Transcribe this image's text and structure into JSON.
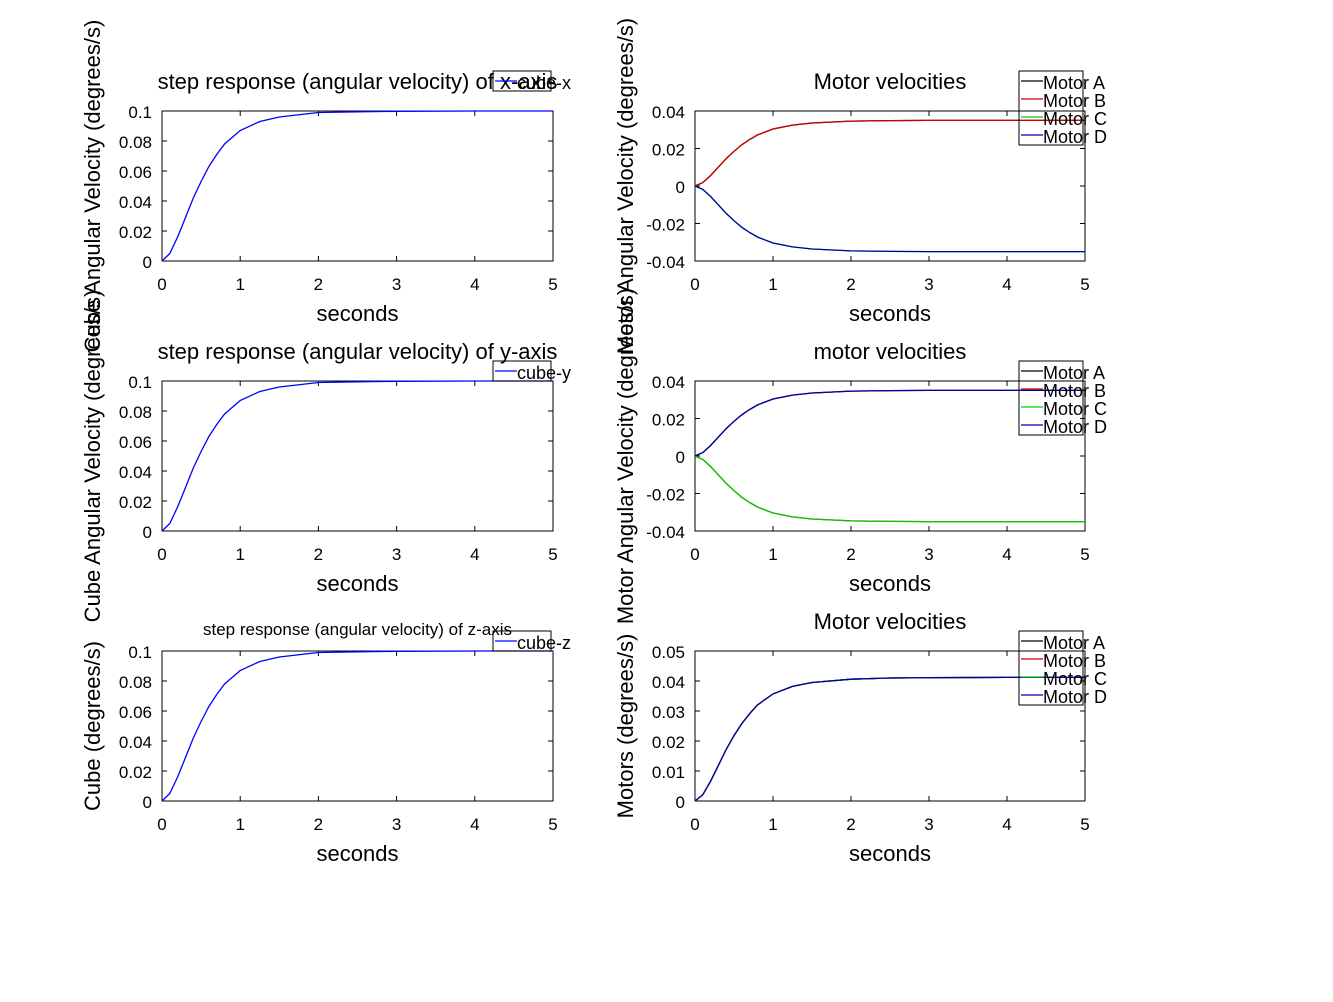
{
  "charts": [
    {
      "type": "line",
      "title": "step response (angular velocity) of x-axis",
      "xlabel": "seconds",
      "ylabel": "Cube Angular Velocity (degrees/s)",
      "xlim": [
        0,
        5
      ],
      "ylim": [
        0,
        0.1
      ],
      "xticks": [
        0,
        1,
        2,
        3,
        4,
        5
      ],
      "yticks": [
        0,
        0.02,
        0.04,
        0.06,
        0.08,
        0.1
      ],
      "grid": false,
      "legend_position": "top-right",
      "series": [
        {
          "name": "cube-x",
          "color": "#0000ff",
          "x": [
            0,
            0.1,
            0.2,
            0.3,
            0.4,
            0.5,
            0.6,
            0.7,
            0.8,
            1.0,
            1.25,
            1.5,
            2.0,
            2.5,
            3.0,
            4.0,
            5.0
          ],
          "y": [
            0,
            0.005,
            0.016,
            0.029,
            0.042,
            0.053,
            0.063,
            0.071,
            0.078,
            0.087,
            0.093,
            0.096,
            0.099,
            0.0995,
            0.0998,
            0.1,
            0.1
          ]
        }
      ]
    },
    {
      "type": "line",
      "title": "Motor velocities",
      "xlabel": "seconds",
      "ylabel": "Motor Angular Velocity (degrees/s)",
      "xlim": [
        0,
        5
      ],
      "ylim": [
        -0.04,
        0.04
      ],
      "xticks": [
        0,
        1,
        2,
        3,
        4,
        5
      ],
      "yticks": [
        -0.04,
        -0.02,
        0,
        0.02,
        0.04
      ],
      "grid": false,
      "legend_position": "top-right",
      "series": [
        {
          "name": "Motor A",
          "color": "#000000",
          "x": [
            0,
            0.1,
            0.2,
            0.3,
            0.4,
            0.5,
            0.6,
            0.7,
            0.8,
            1.0,
            1.25,
            1.5,
            2.0,
            2.5,
            3.0,
            4.0,
            5.0
          ],
          "y": [
            0,
            0.0018,
            0.0056,
            0.0101,
            0.0146,
            0.0185,
            0.022,
            0.0248,
            0.0272,
            0.0304,
            0.0325,
            0.0336,
            0.0346,
            0.0349,
            0.035,
            0.035,
            0.035
          ]
        },
        {
          "name": "Motor B",
          "color": "#cc0000",
          "x": [
            0,
            0.1,
            0.2,
            0.3,
            0.4,
            0.5,
            0.6,
            0.7,
            0.8,
            1.0,
            1.25,
            1.5,
            2.0,
            2.5,
            3.0,
            4.0,
            5.0
          ],
          "y": [
            0,
            0.0018,
            0.0056,
            0.0101,
            0.0146,
            0.0185,
            0.022,
            0.0248,
            0.0272,
            0.0304,
            0.0325,
            0.0336,
            0.0346,
            0.0349,
            0.035,
            0.035,
            0.035
          ]
        },
        {
          "name": "Motor C",
          "color": "#00cc00",
          "x": [
            0,
            0.1,
            0.2,
            0.3,
            0.4,
            0.5,
            0.6,
            0.7,
            0.8,
            1.0,
            1.25,
            1.5,
            2.0,
            2.5,
            3.0,
            4.0,
            5.0
          ],
          "y": [
            0,
            -0.0018,
            -0.0056,
            -0.0101,
            -0.0146,
            -0.0185,
            -0.022,
            -0.0248,
            -0.0272,
            -0.0304,
            -0.0325,
            -0.0336,
            -0.0346,
            -0.0349,
            -0.035,
            -0.035,
            -0.035
          ]
        },
        {
          "name": "Motor D",
          "color": "#0000aa",
          "x": [
            0,
            0.1,
            0.2,
            0.3,
            0.4,
            0.5,
            0.6,
            0.7,
            0.8,
            1.0,
            1.25,
            1.5,
            2.0,
            2.5,
            3.0,
            4.0,
            5.0
          ],
          "y": [
            0,
            -0.0018,
            -0.0056,
            -0.0101,
            -0.0146,
            -0.0185,
            -0.022,
            -0.0248,
            -0.0272,
            -0.0304,
            -0.0325,
            -0.0336,
            -0.0346,
            -0.0349,
            -0.035,
            -0.035,
            -0.035
          ]
        }
      ]
    },
    {
      "type": "line",
      "title": "step response (angular velocity) of y-axis",
      "xlabel": "seconds",
      "ylabel": "Cube Angular Velocity (degrees/s)",
      "xlim": [
        0,
        5
      ],
      "ylim": [
        0,
        0.1
      ],
      "xticks": [
        0,
        1,
        2,
        3,
        4,
        5
      ],
      "yticks": [
        0,
        0.02,
        0.04,
        0.06,
        0.08,
        0.1
      ],
      "grid": false,
      "legend_position": "top-right",
      "series": [
        {
          "name": "cube-y",
          "color": "#0000ff",
          "x": [
            0,
            0.1,
            0.2,
            0.3,
            0.4,
            0.5,
            0.6,
            0.7,
            0.8,
            1.0,
            1.25,
            1.5,
            2.0,
            2.5,
            3.0,
            4.0,
            5.0
          ],
          "y": [
            0,
            0.005,
            0.016,
            0.029,
            0.042,
            0.053,
            0.063,
            0.071,
            0.078,
            0.087,
            0.093,
            0.096,
            0.099,
            0.0995,
            0.0998,
            0.1,
            0.1
          ]
        }
      ]
    },
    {
      "type": "line",
      "title": "motor velocities",
      "xlabel": "seconds",
      "ylabel": "Motor Angular Velocity (degrees/s)",
      "xlim": [
        0,
        5
      ],
      "ylim": [
        -0.04,
        0.04
      ],
      "xticks": [
        0,
        1,
        2,
        3,
        4,
        5
      ],
      "yticks": [
        -0.04,
        -0.02,
        0,
        0.02,
        0.04
      ],
      "grid": false,
      "legend_position": "top-right",
      "series": [
        {
          "name": "Motor A",
          "color": "#000000",
          "x": [
            0,
            0.1,
            0.2,
            0.3,
            0.4,
            0.5,
            0.6,
            0.7,
            0.8,
            1.0,
            1.25,
            1.5,
            2.0,
            2.5,
            3.0,
            4.0,
            5.0
          ],
          "y": [
            0,
            0.0018,
            0.0056,
            0.0101,
            0.0146,
            0.0185,
            0.022,
            0.0248,
            0.0272,
            0.0304,
            0.0325,
            0.0336,
            0.0346,
            0.0349,
            0.035,
            0.035,
            0.035
          ]
        },
        {
          "name": "Motor B",
          "color": "#cc0000",
          "x": [
            0,
            0.1,
            0.2,
            0.3,
            0.4,
            0.5,
            0.6,
            0.7,
            0.8,
            1.0,
            1.25,
            1.5,
            2.0,
            2.5,
            3.0,
            4.0,
            5.0
          ],
          "y": [
            0,
            -0.0018,
            -0.0056,
            -0.0101,
            -0.0146,
            -0.0185,
            -0.022,
            -0.0248,
            -0.0272,
            -0.0304,
            -0.0325,
            -0.0336,
            -0.0346,
            -0.0349,
            -0.035,
            -0.035,
            -0.035
          ]
        },
        {
          "name": "Motor C",
          "color": "#00cc00",
          "x": [
            0,
            0.1,
            0.2,
            0.3,
            0.4,
            0.5,
            0.6,
            0.7,
            0.8,
            1.0,
            1.25,
            1.5,
            2.0,
            2.5,
            3.0,
            4.0,
            5.0
          ],
          "y": [
            0,
            -0.0018,
            -0.0056,
            -0.0101,
            -0.0146,
            -0.0185,
            -0.022,
            -0.0248,
            -0.0272,
            -0.0304,
            -0.0325,
            -0.0336,
            -0.0346,
            -0.0349,
            -0.035,
            -0.035,
            -0.035
          ]
        },
        {
          "name": "Motor D",
          "color": "#0000aa",
          "x": [
            0,
            0.1,
            0.2,
            0.3,
            0.4,
            0.5,
            0.6,
            0.7,
            0.8,
            1.0,
            1.25,
            1.5,
            2.0,
            2.5,
            3.0,
            4.0,
            5.0
          ],
          "y": [
            0,
            0.0018,
            0.0056,
            0.0101,
            0.0146,
            0.0185,
            0.022,
            0.0248,
            0.0272,
            0.0304,
            0.0325,
            0.0336,
            0.0346,
            0.0349,
            0.035,
            0.035,
            0.035
          ]
        }
      ]
    },
    {
      "type": "line",
      "title": "step response (angular velocity) of z-axis",
      "xlabel": "seconds",
      "ylabel": "Cube (degrees/s)",
      "xlim": [
        0,
        5
      ],
      "ylim": [
        0,
        0.1
      ],
      "xticks": [
        0,
        1,
        2,
        3,
        4,
        5
      ],
      "yticks": [
        0,
        0.02,
        0.04,
        0.06,
        0.08,
        0.1
      ],
      "grid": false,
      "legend_position": "top-right",
      "series": [
        {
          "name": "cube-z",
          "color": "#0000ff",
          "x": [
            0,
            0.1,
            0.2,
            0.3,
            0.4,
            0.5,
            0.6,
            0.7,
            0.8,
            1.0,
            1.25,
            1.5,
            2.0,
            2.5,
            3.0,
            4.0,
            5.0
          ],
          "y": [
            0,
            0.005,
            0.016,
            0.029,
            0.042,
            0.053,
            0.063,
            0.071,
            0.078,
            0.087,
            0.093,
            0.096,
            0.099,
            0.0995,
            0.0998,
            0.1,
            0.1
          ]
        }
      ]
    },
    {
      "type": "line",
      "title": "Motor velocities",
      "xlabel": "seconds",
      "ylabel": "Motors (degrees/s)",
      "xlim": [
        0,
        5
      ],
      "ylim": [
        0,
        0.05
      ],
      "xticks": [
        0,
        1,
        2,
        3,
        4,
        5
      ],
      "yticks": [
        0,
        0.01,
        0.02,
        0.03,
        0.04,
        0.05
      ],
      "grid": false,
      "legend_position": "top-right",
      "series": [
        {
          "name": "Motor A",
          "color": "#000000",
          "x": [
            0,
            0.1,
            0.2,
            0.3,
            0.4,
            0.5,
            0.6,
            0.7,
            0.8,
            1.0,
            1.25,
            1.5,
            2.0,
            2.5,
            3.0,
            4.0,
            5.0
          ],
          "y": [
            0,
            0.0021,
            0.0066,
            0.0119,
            0.0172,
            0.0218,
            0.0258,
            0.0291,
            0.032,
            0.0357,
            0.0382,
            0.0395,
            0.0406,
            0.041,
            0.0411,
            0.0412,
            0.0412
          ]
        },
        {
          "name": "Motor B",
          "color": "#cc0000",
          "x": [
            0,
            0.1,
            0.2,
            0.3,
            0.4,
            0.5,
            0.6,
            0.7,
            0.8,
            1.0,
            1.25,
            1.5,
            2.0,
            2.5,
            3.0,
            4.0,
            5.0
          ],
          "y": [
            0,
            0.0021,
            0.0066,
            0.0119,
            0.0172,
            0.0218,
            0.0258,
            0.0291,
            0.032,
            0.0357,
            0.0382,
            0.0395,
            0.0406,
            0.041,
            0.0411,
            0.0412,
            0.0412
          ]
        },
        {
          "name": "Motor C",
          "color": "#00cc00",
          "x": [
            0,
            0.1,
            0.2,
            0.3,
            0.4,
            0.5,
            0.6,
            0.7,
            0.8,
            1.0,
            1.25,
            1.5,
            2.0,
            2.5,
            3.0,
            4.0,
            5.0
          ],
          "y": [
            0,
            0.0021,
            0.0066,
            0.0119,
            0.0172,
            0.0218,
            0.0258,
            0.0291,
            0.032,
            0.0357,
            0.0382,
            0.0395,
            0.0406,
            0.041,
            0.0411,
            0.0412,
            0.0412
          ]
        },
        {
          "name": "Motor D",
          "color": "#0000aa",
          "x": [
            0,
            0.1,
            0.2,
            0.3,
            0.4,
            0.5,
            0.6,
            0.7,
            0.8,
            1.0,
            1.25,
            1.5,
            2.0,
            2.5,
            3.0,
            4.0,
            5.0
          ],
          "y": [
            0,
            0.0021,
            0.0066,
            0.0119,
            0.0172,
            0.0218,
            0.0258,
            0.0291,
            0.032,
            0.0357,
            0.0382,
            0.0395,
            0.0406,
            0.041,
            0.0411,
            0.0412,
            0.0412
          ]
        }
      ]
    }
  ],
  "chart_data": [
    {
      "type": "line",
      "title": "step response (angular velocity) of x-axis",
      "xlabel": "seconds",
      "ylabel": "Cube Angular Velocity (degrees/s)",
      "xlim": [
        0,
        5
      ],
      "ylim": [
        0,
        0.1
      ],
      "series_names": [
        "cube-x"
      ],
      "steady_state": 0.1
    },
    {
      "type": "line",
      "title": "Motor velocities",
      "xlabel": "seconds",
      "ylabel": "Motor Angular Velocity (degrees/s)",
      "xlim": [
        0,
        5
      ],
      "ylim": [
        -0.04,
        0.04
      ],
      "series_names": [
        "Motor A",
        "Motor B",
        "Motor C",
        "Motor D"
      ],
      "steady_state": [
        0.035,
        0.035,
        -0.035,
        -0.035
      ]
    },
    {
      "type": "line",
      "title": "step response (angular velocity) of y-axis",
      "xlabel": "seconds",
      "ylabel": "Cube Angular Velocity (degrees/s)",
      "xlim": [
        0,
        5
      ],
      "ylim": [
        0,
        0.1
      ],
      "series_names": [
        "cube-y"
      ],
      "steady_state": 0.1
    },
    {
      "type": "line",
      "title": "motor velocities",
      "xlabel": "seconds",
      "ylabel": "Motor Angular Velocity (degrees/s)",
      "xlim": [
        0,
        5
      ],
      "ylim": [
        -0.04,
        0.04
      ],
      "series_names": [
        "Motor A",
        "Motor B",
        "Motor C",
        "Motor D"
      ],
      "steady_state": [
        0.035,
        -0.035,
        -0.035,
        0.035
      ]
    },
    {
      "type": "line",
      "title": "step response (angular velocity) of z-axis",
      "xlabel": "seconds",
      "ylabel": "Cube (degrees/s)",
      "xlim": [
        0,
        5
      ],
      "ylim": [
        0,
        0.1
      ],
      "series_names": [
        "cube-z"
      ],
      "steady_state": 0.1
    },
    {
      "type": "line",
      "title": "Motor velocities",
      "xlabel": "seconds",
      "ylabel": "Motors (degrees/s)",
      "xlim": [
        0,
        5
      ],
      "ylim": [
        0,
        0.05
      ],
      "series_names": [
        "Motor A",
        "Motor B",
        "Motor C",
        "Motor D"
      ],
      "steady_state": [
        0.0412,
        0.0412,
        0.0412,
        0.0412
      ]
    }
  ]
}
